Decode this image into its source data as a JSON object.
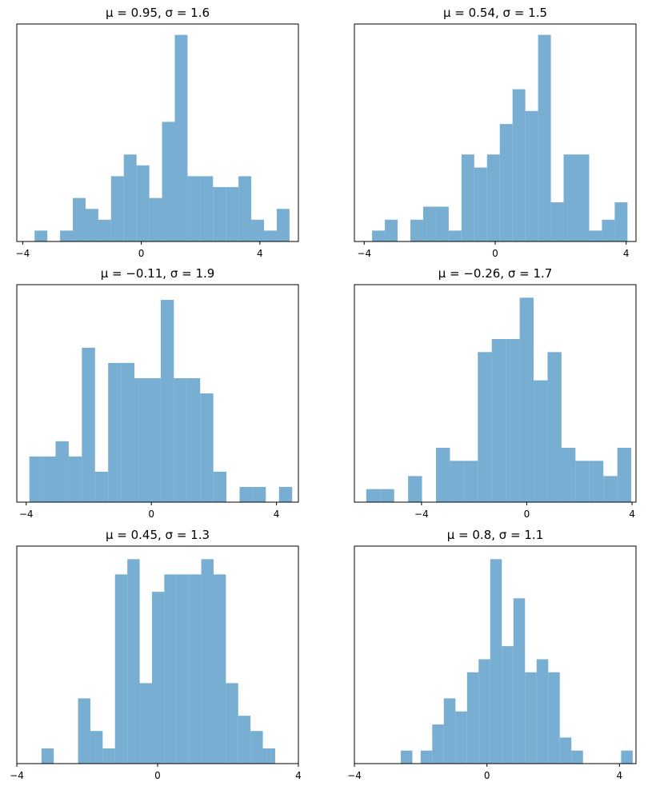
{
  "chart_data": [
    {
      "type": "bar",
      "title": "μ = 0.95,    σ = 1.6",
      "color": "#77aed2",
      "xlim": [
        -4.2,
        5.3
      ],
      "ylim": [
        0,
        1
      ],
      "xticks": [
        -4,
        0,
        4
      ],
      "xtick_labels": [
        "−4",
        "0",
        "4"
      ],
      "yticks": [],
      "grid": false,
      "bins": [
        {
          "x0": -3.6,
          "x1": -3.17,
          "value": 0.05
        },
        {
          "x0": -2.74,
          "x1": -2.31,
          "value": 0.05
        },
        {
          "x0": -2.31,
          "x1": -1.88,
          "value": 0.2
        },
        {
          "x0": -1.88,
          "x1": -1.45,
          "value": 0.15
        },
        {
          "x0": -1.45,
          "x1": -1.02,
          "value": 0.1
        },
        {
          "x0": -1.02,
          "x1": -0.59,
          "value": 0.3
        },
        {
          "x0": -0.59,
          "x1": -0.16,
          "value": 0.4
        },
        {
          "x0": -0.16,
          "x1": 0.27,
          "value": 0.35
        },
        {
          "x0": 0.27,
          "x1": 0.7,
          "value": 0.2
        },
        {
          "x0": 0.7,
          "x1": 1.13,
          "value": 0.55
        },
        {
          "x0": 1.13,
          "x1": 1.56,
          "value": 0.95
        },
        {
          "x0": 1.56,
          "x1": 1.99,
          "value": 0.3
        },
        {
          "x0": 1.99,
          "x1": 2.42,
          "value": 0.3
        },
        {
          "x0": 2.42,
          "x1": 2.85,
          "value": 0.25
        },
        {
          "x0": 2.85,
          "x1": 3.28,
          "value": 0.25
        },
        {
          "x0": 3.28,
          "x1": 3.71,
          "value": 0.3
        },
        {
          "x0": 3.71,
          "x1": 4.14,
          "value": 0.1
        },
        {
          "x0": 4.14,
          "x1": 4.57,
          "value": 0.05
        },
        {
          "x0": 4.57,
          "x1": 5.0,
          "value": 0.15
        }
      ]
    },
    {
      "type": "bar",
      "title": "μ = 0.54,    σ = 1.5",
      "color": "#77aed2",
      "xlim": [
        -4.3,
        4.3
      ],
      "ylim": [
        0,
        1
      ],
      "xticks": [
        -4,
        0,
        4
      ],
      "xtick_labels": [
        "−4",
        "0",
        "4"
      ],
      "yticks": [],
      "grid": false,
      "bins": [
        {
          "x0": -3.76,
          "x1": -3.37,
          "value": 0.05
        },
        {
          "x0": -3.37,
          "x1": -2.98,
          "value": 0.1
        },
        {
          "x0": -2.59,
          "x1": -2.2,
          "value": 0.1
        },
        {
          "x0": -2.2,
          "x1": -1.81,
          "value": 0.16
        },
        {
          "x0": -1.81,
          "x1": -1.42,
          "value": 0.16
        },
        {
          "x0": -1.42,
          "x1": -1.03,
          "value": 0.05
        },
        {
          "x0": -1.03,
          "x1": -0.64,
          "value": 0.4
        },
        {
          "x0": -0.64,
          "x1": -0.25,
          "value": 0.34
        },
        {
          "x0": -0.25,
          "x1": 0.14,
          "value": 0.4
        },
        {
          "x0": 0.14,
          "x1": 0.53,
          "value": 0.54
        },
        {
          "x0": 0.53,
          "x1": 0.92,
          "value": 0.7
        },
        {
          "x0": 0.92,
          "x1": 1.31,
          "value": 0.6
        },
        {
          "x0": 1.31,
          "x1": 1.7,
          "value": 0.95
        },
        {
          "x0": 1.7,
          "x1": 2.09,
          "value": 0.18
        },
        {
          "x0": 2.09,
          "x1": 2.48,
          "value": 0.4
        },
        {
          "x0": 2.48,
          "x1": 2.87,
          "value": 0.4
        },
        {
          "x0": 2.87,
          "x1": 3.26,
          "value": 0.05
        },
        {
          "x0": 3.26,
          "x1": 3.65,
          "value": 0.1
        },
        {
          "x0": 3.65,
          "x1": 4.04,
          "value": 0.18
        }
      ]
    },
    {
      "type": "bar",
      "title": "μ = −0.11,    σ = 1.9",
      "color": "#77aed2",
      "xlim": [
        -4.3,
        4.7
      ],
      "ylim": [
        0,
        1
      ],
      "xticks": [
        -4,
        0,
        4
      ],
      "xtick_labels": [
        "−4",
        "0",
        "4"
      ],
      "yticks": [],
      "grid": false,
      "bins": [
        {
          "x0": -3.9,
          "x1": -3.48,
          "value": 0.21
        },
        {
          "x0": -3.48,
          "x1": -3.06,
          "value": 0.21
        },
        {
          "x0": -3.06,
          "x1": -2.64,
          "value": 0.28
        },
        {
          "x0": -2.64,
          "x1": -2.22,
          "value": 0.21
        },
        {
          "x0": -2.22,
          "x1": -1.8,
          "value": 0.71
        },
        {
          "x0": -1.8,
          "x1": -1.38,
          "value": 0.14
        },
        {
          "x0": -1.38,
          "x1": -0.96,
          "value": 0.64
        },
        {
          "x0": -0.96,
          "x1": -0.54,
          "value": 0.64
        },
        {
          "x0": -0.54,
          "x1": -0.12,
          "value": 0.57
        },
        {
          "x0": -0.12,
          "x1": 0.3,
          "value": 0.57
        },
        {
          "x0": 0.3,
          "x1": 0.72,
          "value": 0.93
        },
        {
          "x0": 0.72,
          "x1": 1.14,
          "value": 0.57
        },
        {
          "x0": 1.14,
          "x1": 1.56,
          "value": 0.57
        },
        {
          "x0": 1.56,
          "x1": 1.98,
          "value": 0.5
        },
        {
          "x0": 1.98,
          "x1": 2.4,
          "value": 0.14
        },
        {
          "x0": 2.82,
          "x1": 3.24,
          "value": 0.07
        },
        {
          "x0": 3.24,
          "x1": 3.66,
          "value": 0.07
        },
        {
          "x0": 4.08,
          "x1": 4.5,
          "value": 0.07
        }
      ]
    },
    {
      "type": "bar",
      "title": "μ = −0.26,    σ = 1.7",
      "color": "#77aed2",
      "xlim": [
        -6.55,
        4.15
      ],
      "ylim": [
        0,
        1
      ],
      "xticks": [
        -4,
        0,
        4
      ],
      "xtick_labels": [
        "−4",
        "0",
        "4"
      ],
      "yticks": [],
      "grid": false,
      "bins": [
        {
          "x0": -6.1,
          "x1": -5.57,
          "value": 0.06
        },
        {
          "x0": -5.57,
          "x1": -5.04,
          "value": 0.06
        },
        {
          "x0": -4.51,
          "x1": -3.98,
          "value": 0.12
        },
        {
          "x0": -3.45,
          "x1": -2.92,
          "value": 0.25
        },
        {
          "x0": -2.92,
          "x1": -2.39,
          "value": 0.19
        },
        {
          "x0": -2.39,
          "x1": -1.86,
          "value": 0.19
        },
        {
          "x0": -1.86,
          "x1": -1.33,
          "value": 0.69
        },
        {
          "x0": -1.33,
          "x1": -0.8,
          "value": 0.75
        },
        {
          "x0": -0.8,
          "x1": -0.27,
          "value": 0.75
        },
        {
          "x0": -0.27,
          "x1": 0.26,
          "value": 0.94
        },
        {
          "x0": 0.26,
          "x1": 0.79,
          "value": 0.56
        },
        {
          "x0": 0.79,
          "x1": 1.32,
          "value": 0.69
        },
        {
          "x0": 1.32,
          "x1": 1.85,
          "value": 0.25
        },
        {
          "x0": 1.85,
          "x1": 2.38,
          "value": 0.19
        },
        {
          "x0": 2.38,
          "x1": 2.91,
          "value": 0.19
        },
        {
          "x0": 2.91,
          "x1": 3.44,
          "value": 0.12
        },
        {
          "x0": 3.44,
          "x1": 3.97,
          "value": 0.25
        }
      ]
    },
    {
      "type": "bar",
      "title": "μ = 0.45,    σ = 1.3",
      "color": "#77aed2",
      "xlim": [
        -4.0,
        4.0
      ],
      "ylim": [
        0,
        1
      ],
      "xticks": [
        -4,
        0,
        4
      ],
      "xtick_labels": [
        "−4",
        "0",
        "4"
      ],
      "yticks": [],
      "grid": false,
      "bins": [
        {
          "x0": -3.3,
          "x1": -2.95,
          "value": 0.07
        },
        {
          "x0": -2.26,
          "x1": -1.91,
          "value": 0.3
        },
        {
          "x0": -1.91,
          "x1": -1.56,
          "value": 0.15
        },
        {
          "x0": -1.56,
          "x1": -1.21,
          "value": 0.07
        },
        {
          "x0": -1.21,
          "x1": -0.86,
          "value": 0.87
        },
        {
          "x0": -0.86,
          "x1": -0.51,
          "value": 0.94
        },
        {
          "x0": -0.51,
          "x1": -0.16,
          "value": 0.37
        },
        {
          "x0": -0.16,
          "x1": 0.19,
          "value": 0.79
        },
        {
          "x0": 0.19,
          "x1": 0.54,
          "value": 0.87
        },
        {
          "x0": 0.54,
          "x1": 0.89,
          "value": 0.87
        },
        {
          "x0": 0.89,
          "x1": 1.24,
          "value": 0.87
        },
        {
          "x0": 1.24,
          "x1": 1.59,
          "value": 0.94
        },
        {
          "x0": 1.59,
          "x1": 1.94,
          "value": 0.87
        },
        {
          "x0": 1.94,
          "x1": 2.29,
          "value": 0.37
        },
        {
          "x0": 2.29,
          "x1": 2.64,
          "value": 0.22
        },
        {
          "x0": 2.64,
          "x1": 2.99,
          "value": 0.15
        },
        {
          "x0": 2.99,
          "x1": 3.34,
          "value": 0.07
        }
      ]
    },
    {
      "type": "bar",
      "title": "μ = 0.8,    σ = 1.1",
      "color": "#77aed2",
      "xlim": [
        -4.0,
        4.5
      ],
      "ylim": [
        0,
        1
      ],
      "xticks": [
        -4,
        0,
        4
      ],
      "xtick_labels": [
        "−4",
        "0",
        "4"
      ],
      "yticks": [],
      "grid": false,
      "bins": [
        {
          "x0": -2.6,
          "x1": -2.25,
          "value": 0.06
        },
        {
          "x0": -2.0,
          "x1": -1.65,
          "value": 0.06
        },
        {
          "x0": -1.65,
          "x1": -1.3,
          "value": 0.18
        },
        {
          "x0": -1.3,
          "x1": -0.95,
          "value": 0.3
        },
        {
          "x0": -0.95,
          "x1": -0.6,
          "value": 0.24
        },
        {
          "x0": -0.6,
          "x1": -0.25,
          "value": 0.42
        },
        {
          "x0": -0.25,
          "x1": 0.1,
          "value": 0.48
        },
        {
          "x0": 0.1,
          "x1": 0.45,
          "value": 0.94
        },
        {
          "x0": 0.45,
          "x1": 0.8,
          "value": 0.54
        },
        {
          "x0": 0.8,
          "x1": 1.15,
          "value": 0.76
        },
        {
          "x0": 1.15,
          "x1": 1.5,
          "value": 0.42
        },
        {
          "x0": 1.5,
          "x1": 1.85,
          "value": 0.48
        },
        {
          "x0": 1.85,
          "x1": 2.2,
          "value": 0.42
        },
        {
          "x0": 2.2,
          "x1": 2.55,
          "value": 0.12
        },
        {
          "x0": 2.55,
          "x1": 2.9,
          "value": 0.06
        },
        {
          "x0": 3.25,
          "x1": 3.6,
          "value": 0.0
        },
        {
          "x0": 4.05,
          "x1": 4.4,
          "value": 0.06
        }
      ]
    }
  ]
}
